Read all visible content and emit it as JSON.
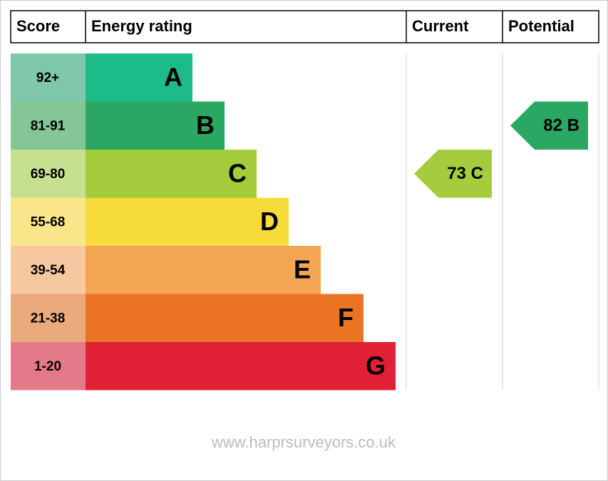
{
  "header": {
    "columns": [
      "Score",
      "Energy rating",
      "Current",
      "Potential"
    ]
  },
  "bands": [
    {
      "score": "92+",
      "letter": "A",
      "color": "#1ebb8a",
      "score_color": "#80c8ac"
    },
    {
      "score": "81-91",
      "letter": "B",
      "color": "#2aa863",
      "score_color": "#85c699"
    },
    {
      "score": "69-80",
      "letter": "C",
      "color": "#a5cc3c",
      "score_color": "#c7e08f"
    },
    {
      "score": "55-68",
      "letter": "D",
      "color": "#f6db3b",
      "score_color": "#f9e68a"
    },
    {
      "score": "39-54",
      "letter": "E",
      "color": "#f4a553",
      "score_color": "#f6c8a0"
    },
    {
      "score": "21-38",
      "letter": "F",
      "color": "#eb7424",
      "score_color": "#ebaa7c"
    },
    {
      "score": "1-20",
      "letter": "G",
      "color": "#e11f35",
      "score_color": "#e47a89"
    }
  ],
  "current": {
    "label": "73 C",
    "color": "#a5cc3c"
  },
  "potential": {
    "label": "82 B",
    "color": "#2aa863"
  },
  "footer": "www.harprsurveyors.co.uk"
}
